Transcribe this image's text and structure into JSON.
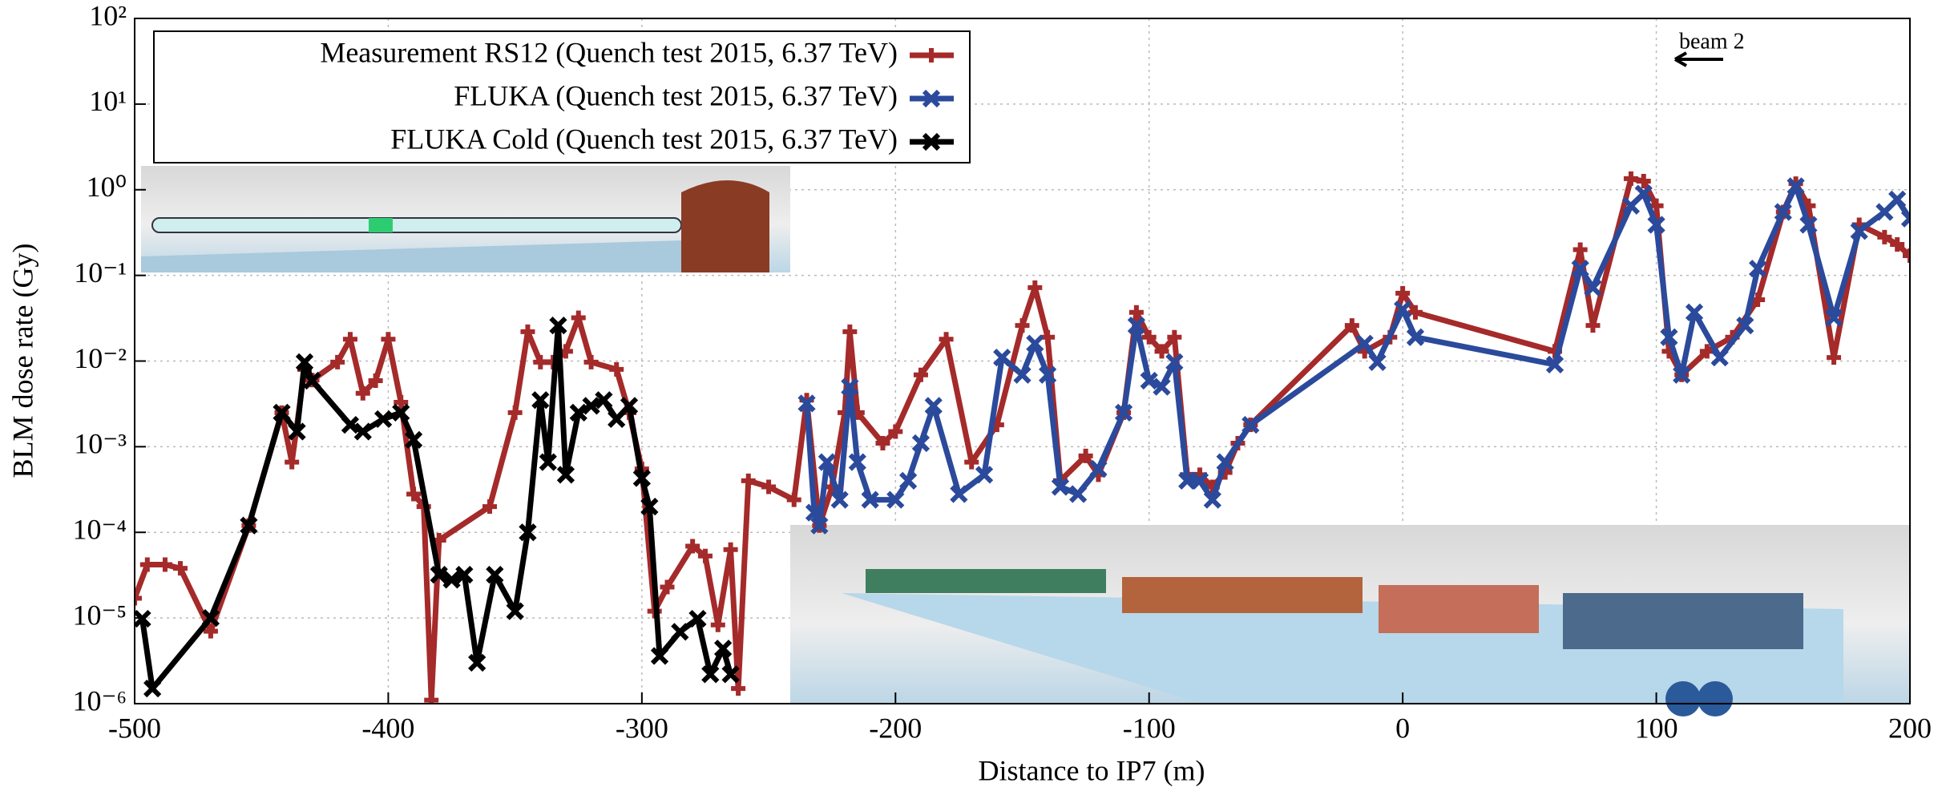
{
  "chart_data": {
    "type": "line",
    "xlabel": "Distance to IP7 (m)",
    "ylabel": "BLM dose rate (Gy)",
    "annotation": "beam 2",
    "log_y": true,
    "grid": true,
    "legend": "upper left",
    "xlim": [
      -500,
      200
    ],
    "xticks": [
      -500,
      -400,
      -300,
      -200,
      -100,
      0,
      100,
      200
    ],
    "ylim": [
      1e-06,
      100
    ],
    "yticks": [
      {
        "value": 1e-06,
        "label": "10⁻⁶"
      },
      {
        "value": 1e-05,
        "label": "10⁻⁵"
      },
      {
        "value": 0.0001,
        "label": "10⁻⁴"
      },
      {
        "value": 0.001,
        "label": "10⁻³"
      },
      {
        "value": 0.01,
        "label": "10⁻²"
      },
      {
        "value": 0.1,
        "label": "10⁻¹"
      },
      {
        "value": 1,
        "label": "10⁰"
      },
      {
        "value": 10,
        "label": "10¹"
      },
      {
        "value": 100,
        "label": "10²"
      }
    ],
    "series": [
      {
        "name": "Measurement RS12 (Quench test 2015, 6.37 TeV)",
        "color": "#a52a2a",
        "marker": "plus",
        "x": [
          -500,
          -495,
          -488,
          -482,
          -470,
          -455,
          -442,
          -438,
          -433,
          -430,
          -420,
          -415,
          -410,
          -405,
          -400,
          -395,
          -390,
          -386,
          -383,
          -380,
          -360,
          -350,
          -345,
          -340,
          -335,
          -330,
          -325,
          -320,
          -310,
          -305,
          -300,
          -295,
          -290,
          -280,
          -275,
          -270,
          -265,
          -262,
          -258,
          -250,
          -240,
          -235,
          -230,
          -225,
          -220,
          -218,
          -215,
          -205,
          -200,
          -190,
          -180,
          -170,
          -160,
          -150,
          -145,
          -140,
          -135,
          -125,
          -120,
          -110,
          -105,
          -100,
          -95,
          -90,
          -85,
          -80,
          -75,
          -70,
          -65,
          -60,
          -20,
          -15,
          -5,
          0,
          5,
          60,
          70,
          75,
          90,
          95,
          100,
          105,
          110,
          120,
          130,
          140,
          150,
          155,
          160,
          170,
          180,
          190,
          195,
          200
        ],
        "values": [
          1.7e-05,
          4.2e-05,
          4.2e-05,
          3.8e-05,
          7e-06,
          0.00012,
          0.0025,
          0.00066,
          0.008,
          0.006,
          0.0097,
          0.018,
          0.0042,
          0.0059,
          0.018,
          0.0033,
          0.00028,
          0.0002,
          1.1e-06,
          8.1e-05,
          0.0002,
          0.0025,
          0.022,
          0.0097,
          0.0097,
          0.013,
          0.032,
          0.0097,
          0.008,
          0.0025,
          0.00055,
          1.2e-05,
          2.3e-05,
          6.9e-05,
          5.3e-05,
          8.3e-06,
          6.3e-05,
          1.5e-06,
          0.0004,
          0.00034,
          0.00024,
          0.0035,
          0.00012,
          0.00034,
          0.0025,
          0.022,
          0.0025,
          0.0011,
          0.0015,
          0.0069,
          0.018,
          0.00066,
          0.0018,
          0.026,
          0.072,
          0.019,
          0.0004,
          0.00078,
          0.00047,
          0.0025,
          0.037,
          0.019,
          0.013,
          0.019,
          0.00047,
          0.00047,
          0.00034,
          0.0005,
          0.0011,
          0.0018,
          0.026,
          0.013,
          0.019,
          0.062,
          0.037,
          0.013,
          0.2,
          0.026,
          1.35,
          1.26,
          0.65,
          0.013,
          0.0069,
          0.013,
          0.019,
          0.052,
          0.55,
          1.18,
          0.65,
          0.011,
          0.39,
          0.28,
          0.23,
          0.17
        ]
      },
      {
        "name": "FLUKA (Quench test 2015, 6.37 TeV)",
        "color": "#2b4a9b",
        "marker": "cross",
        "x": [
          -235,
          -232,
          -230,
          -227,
          -222,
          -218,
          -215,
          -210,
          -200,
          -195,
          -190,
          -185,
          -175,
          -165,
          -158,
          -150,
          -145,
          -140,
          -135,
          -128,
          -120,
          -110,
          -105,
          -100,
          -95,
          -90,
          -85,
          -80,
          -75,
          -70,
          -60,
          -15,
          -10,
          0,
          5,
          60,
          70,
          75,
          90,
          95,
          100,
          105,
          110,
          115,
          125,
          135,
          140,
          150,
          155,
          160,
          170,
          180,
          190,
          195,
          200
        ],
        "values": [
          0.0032,
          0.00017,
          0.00012,
          0.00066,
          0.00024,
          0.005,
          0.00066,
          0.00024,
          0.00024,
          0.0004,
          0.0011,
          0.003,
          0.00028,
          0.00047,
          0.011,
          0.0069,
          0.016,
          0.0069,
          0.00034,
          0.00028,
          0.00055,
          0.0025,
          0.026,
          0.0059,
          0.005,
          0.0097,
          0.0004,
          0.0004,
          0.00024,
          0.00066,
          0.0018,
          0.016,
          0.0097,
          0.04,
          0.019,
          0.0091,
          0.12,
          0.072,
          0.65,
          0.9,
          0.39,
          0.019,
          0.0069,
          0.037,
          0.011,
          0.026,
          0.12,
          0.55,
          1.1,
          0.39,
          0.032,
          0.33,
          0.55,
          0.77,
          0.46
        ]
      },
      {
        "name": "FLUKA Cold (Quench test 2015, 6.37 TeV)",
        "color": "#000000",
        "marker": "cross",
        "x": [
          -497,
          -493,
          -470,
          -455,
          -442,
          -436,
          -433,
          -430,
          -415,
          -410,
          -402,
          -395,
          -390,
          -380,
          -375,
          -370,
          -365,
          -358,
          -350,
          -345,
          -340,
          -337,
          -333,
          -330,
          -325,
          -320,
          -315,
          -310,
          -305,
          -300,
          -297,
          -293,
          -285,
          -278,
          -273,
          -268,
          -265
        ],
        "values": [
          9.8e-06,
          1.5e-06,
          1e-05,
          0.00012,
          0.0025,
          0.0015,
          0.0097,
          0.0059,
          0.0018,
          0.0015,
          0.0021,
          0.0025,
          0.0012,
          3.2e-05,
          2.8e-05,
          3.2e-05,
          3e-06,
          3.2e-05,
          1.2e-05,
          0.0001,
          0.0035,
          0.00066,
          0.026,
          0.00047,
          0.0025,
          0.003,
          0.0035,
          0.0021,
          0.003,
          0.00043,
          0.0002,
          3.6e-06,
          6.9e-06,
          9.8e-06,
          2.2e-06,
          4.4e-06,
          2.2e-06
        ]
      }
    ]
  }
}
